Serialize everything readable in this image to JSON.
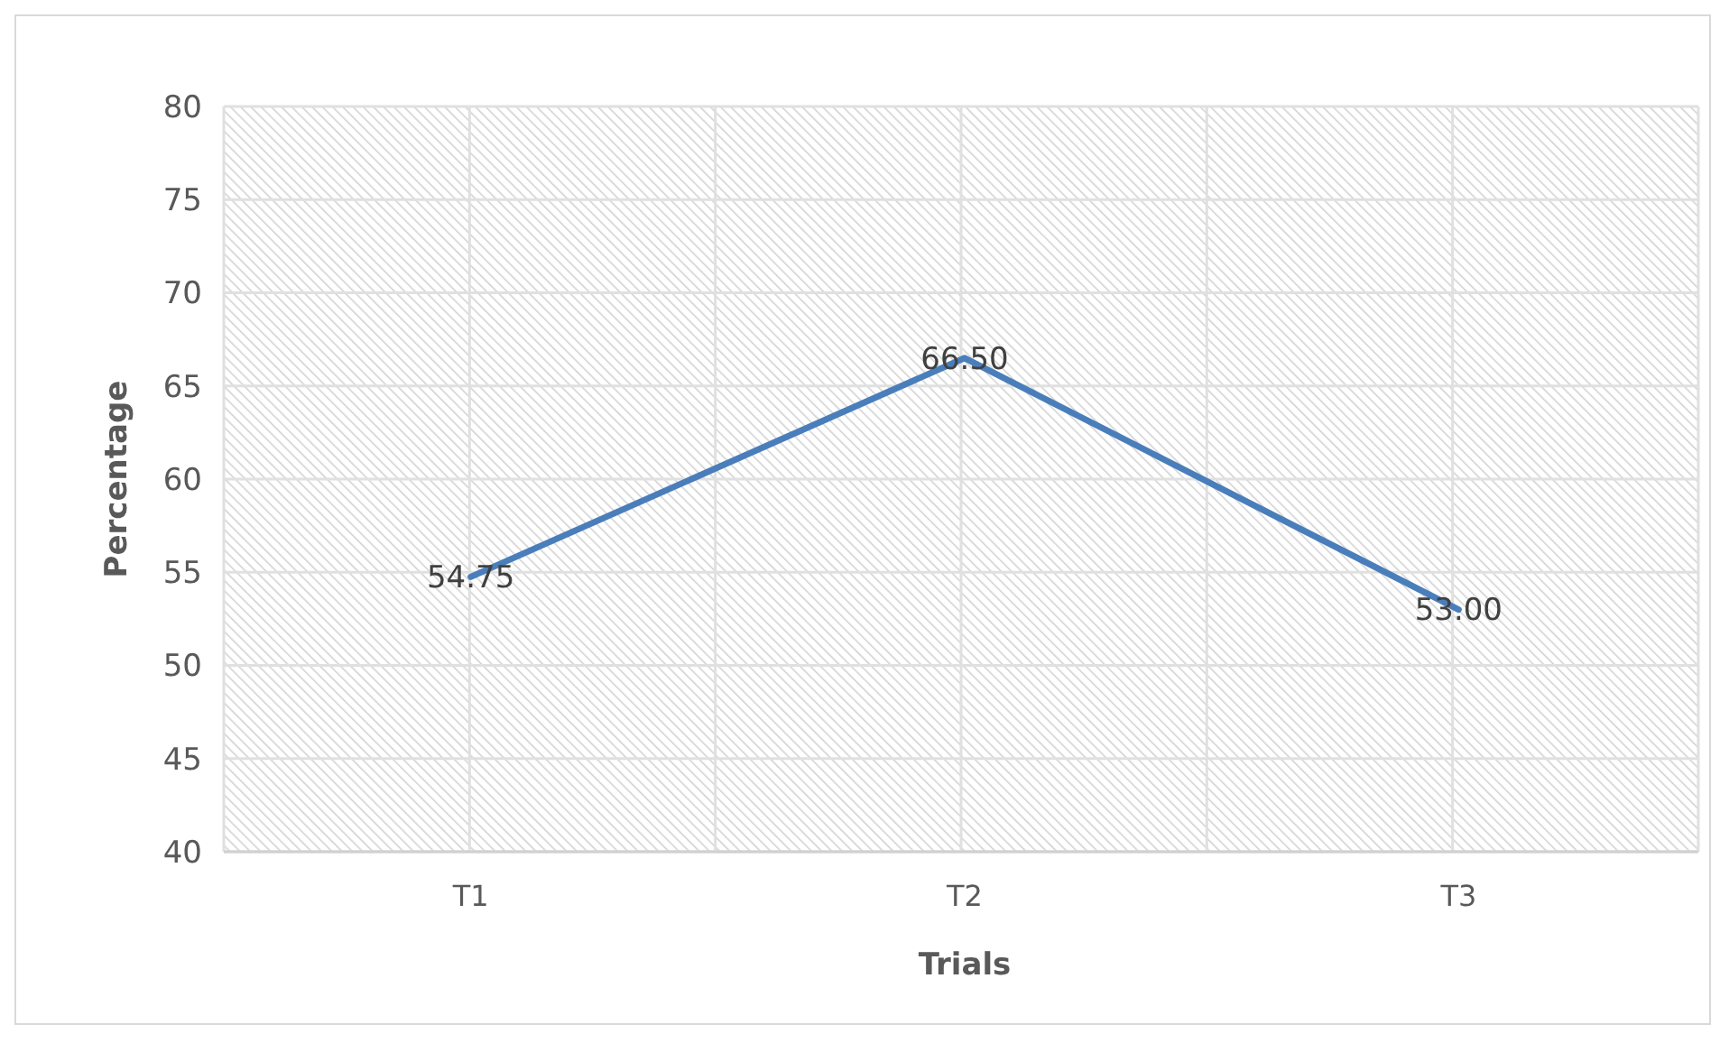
{
  "chart_data": {
    "type": "line",
    "xlabel": "Trials",
    "ylabel": "Percentage",
    "categories": [
      "T1",
      "T2",
      "T3"
    ],
    "series": [
      {
        "color": "#4a7ebb",
        "values": [
          54.75,
          66.5,
          53.0
        ],
        "value_labels": [
          "54.75",
          "66.50",
          "53.00"
        ]
      }
    ],
    "ylim": [
      40,
      80
    ],
    "yticks": [
      40,
      45,
      50,
      55,
      60,
      65,
      70,
      75,
      80
    ],
    "grid": true,
    "marker": "none",
    "line_style": "solid"
  }
}
